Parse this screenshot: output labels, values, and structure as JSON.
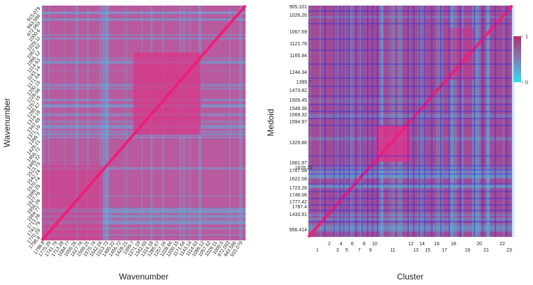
{
  "left_heatmap": {
    "x_title": "Wavenumber",
    "y_title": "Wavenumber",
    "labels": [
      "915.079",
      "943.586",
      "972.093",
      "1000.6",
      "1029.11",
      "1057.62",
      "1086.12",
      "1114.63",
      "1143.14",
      "1171.64",
      "1200.15",
      "1228.66",
      "1257.16",
      "1285.67",
      "1314.18",
      "1342.69",
      "1371.19",
      "1399.7",
      "1428.21",
      "1456.72",
      "1485.22",
      "1513.73",
      "1542.24",
      "1570.74",
      "1599.25",
      "1627.76",
      "1656.26",
      "1684.77",
      "1713.28",
      "1741.79",
      "1770.29",
      "1798.8"
    ]
  },
  "right_heatmap": {
    "x_title": "Cluster",
    "y_title": "Medoid",
    "y_labels": [
      "905.101",
      "1026.26",
      "1067.59",
      "1121.76",
      "1165.94",
      "1244.34",
      "1399.7",
      "1473.82",
      "1509.45",
      "1549.36",
      "1569.32",
      "1594.97",
      "1329.86",
      "1661.97",
      "1676.22",
      "1707.58",
      "1622.06",
      "1723.26",
      "1746.06",
      "1777.42",
      "1787.4",
      "1433.91",
      "956.414"
    ],
    "x_labels": [
      "1",
      "2",
      "3",
      "4",
      "5",
      "6",
      "7",
      "8",
      "9",
      "10",
      "11",
      "12",
      "13",
      "14",
      "15",
      "16",
      "17",
      "18",
      "19",
      "20",
      "21",
      "22",
      "23"
    ],
    "colorbar_ticks": [
      0,
      1
    ]
  }
}
